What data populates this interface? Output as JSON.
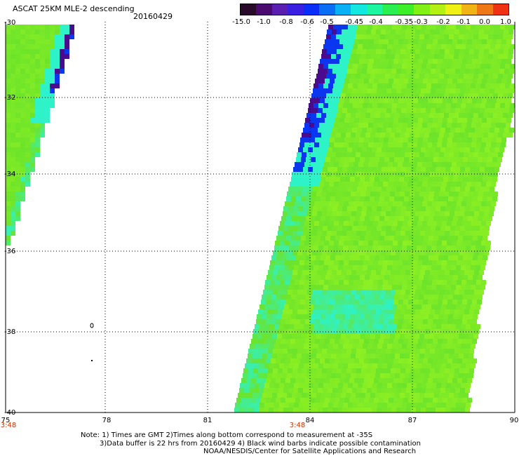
{
  "header": {
    "title": "ASCAT 25KM MLE-2 descending",
    "date": "20160429"
  },
  "colorbar": {
    "labels": [
      "-15.0",
      "-1.0",
      "-0.8",
      "-0.6",
      "-0.5",
      "-0.45",
      "-0.4",
      "-0.35",
      "-0.3",
      "-0.2",
      "-0.1",
      "0.0",
      "1.0"
    ],
    "colors": [
      "#2a0a2a",
      "#4b0b6e",
      "#5a1fb0",
      "#3b1fe0",
      "#0a2ef5",
      "#0a6ef5",
      "#0ab0f5",
      "#14e6e0",
      "#1ef5a0",
      "#28f050",
      "#3cf028",
      "#82f014",
      "#b4f014",
      "#f0f014",
      "#f0b414",
      "#f07814",
      "#f03214"
    ]
  },
  "axes": {
    "lat_labels": [
      "-30",
      "-32",
      "-34",
      "-36",
      "-38",
      "-40"
    ],
    "lon_labels": [
      "75",
      "78",
      "81",
      "84",
      "87",
      "90"
    ],
    "time_labels": [
      "3:48",
      "3:48"
    ]
  },
  "notes": {
    "line1": "Note: 1) Times are GMT 2)Times along bottom correspond to measurement at -35S",
    "line2": "3)Data buffer is 22 hrs from 20160429 4) Black wind barbs indicate possible contamination",
    "line3": "NOAA/NESDIS/Center for Satellite Applications and Research"
  },
  "colors": {
    "swath_green": "#6ce42a",
    "swath_yellowgreen": "#8ef023",
    "swath_cyan": "#2ef2c8",
    "swath_blue": "#0a36f0",
    "swath_purple": "#4b0b8e",
    "time_label_color": "#c83200"
  }
}
